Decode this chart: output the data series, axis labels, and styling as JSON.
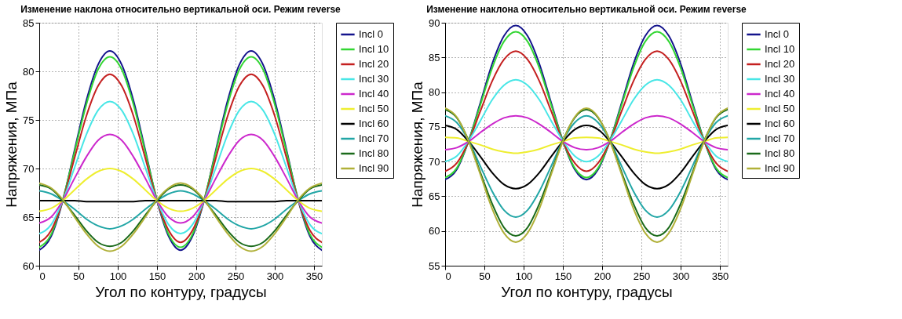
{
  "chart_data": [
    {
      "type": "line",
      "title": "Изменение наклона относительно вертикальной оси. Режим reverse",
      "xlabel": "Угол по контуру, градусы",
      "ylabel": "Напряжения, МПа",
      "x": [
        0,
        15,
        30,
        45,
        60,
        75,
        90,
        105,
        120,
        135,
        150,
        165,
        180,
        195,
        210,
        225,
        240,
        255,
        270,
        285,
        300,
        315,
        330,
        345,
        360
      ],
      "xlim": [
        0,
        360
      ],
      "xticks": [
        0,
        50,
        100,
        150,
        200,
        250,
        300,
        350
      ],
      "ylim": [
        60,
        85
      ],
      "yticks": [
        60,
        65,
        70,
        75,
        80,
        85
      ],
      "grid": true,
      "legend": "top right",
      "marker": "none",
      "line_style": "solid",
      "series": [
        {
          "name": "Incl 0",
          "color": "#14148c",
          "values": [
            61.6,
            63.0,
            66.7,
            71.9,
            77.0,
            80.7,
            82.1,
            80.7,
            77.0,
            71.9,
            66.7,
            63.0,
            61.6,
            63.0,
            66.7,
            71.9,
            77.0,
            80.7,
            82.1,
            80.7,
            77.0,
            71.9,
            66.7,
            63.0,
            61.6
          ]
        },
        {
          "name": "Incl 10",
          "color": "#33d633",
          "values": [
            61.9,
            63.2,
            66.8,
            71.7,
            76.6,
            80.2,
            81.5,
            80.2,
            76.6,
            71.7,
            66.8,
            63.2,
            61.9,
            63.2,
            66.8,
            71.7,
            76.6,
            80.2,
            81.5,
            80.2,
            76.6,
            71.7,
            66.8,
            63.2,
            61.9
          ]
        },
        {
          "name": "Incl 20",
          "color": "#c42020",
          "values": [
            62.4,
            63.6,
            66.7,
            71.1,
            75.4,
            78.5,
            79.7,
            78.5,
            75.4,
            71.1,
            66.7,
            63.6,
            62.4,
            63.6,
            66.7,
            71.1,
            75.4,
            78.5,
            79.7,
            78.5,
            75.4,
            71.1,
            66.7,
            63.6,
            62.4
          ]
        },
        {
          "name": "Incl 30",
          "color": "#48e6e6",
          "values": [
            63.3,
            64.2,
            66.7,
            70.1,
            73.5,
            76.0,
            76.9,
            76.0,
            73.5,
            70.1,
            66.7,
            64.2,
            63.3,
            64.2,
            66.7,
            70.1,
            73.5,
            76.0,
            76.9,
            76.0,
            73.5,
            70.1,
            66.7,
            64.2,
            63.3
          ]
        },
        {
          "name": "Incl 40",
          "color": "#cc28cc",
          "values": [
            64.4,
            65.0,
            66.7,
            69.0,
            71.2,
            72.9,
            73.5,
            72.9,
            71.2,
            69.0,
            66.7,
            65.0,
            64.4,
            65.0,
            66.7,
            69.0,
            71.2,
            72.9,
            73.5,
            72.9,
            71.2,
            69.0,
            66.7,
            65.0,
            64.4
          ]
        },
        {
          "name": "Incl 50",
          "color": "#eeee30",
          "values": [
            65.6,
            65.9,
            66.7,
            67.8,
            68.9,
            69.7,
            70.0,
            69.7,
            68.9,
            67.8,
            66.7,
            65.9,
            65.6,
            65.9,
            66.7,
            67.8,
            68.9,
            69.7,
            70.0,
            69.7,
            68.9,
            67.8,
            66.7,
            65.9,
            65.6
          ]
        },
        {
          "name": "Incl 60",
          "color": "#000000",
          "values": [
            66.7,
            66.7,
            66.7,
            66.7,
            66.6,
            66.6,
            66.6,
            66.6,
            66.6,
            66.7,
            66.7,
            66.7,
            66.7,
            66.7,
            66.7,
            66.7,
            66.6,
            66.6,
            66.6,
            66.6,
            66.6,
            66.7,
            66.7,
            66.7,
            66.7
          ]
        },
        {
          "name": "Incl 70",
          "color": "#22a6a6",
          "values": [
            67.7,
            67.4,
            66.7,
            65.8,
            64.8,
            64.1,
            63.8,
            64.1,
            64.8,
            65.8,
            66.7,
            67.4,
            67.7,
            67.4,
            66.7,
            65.8,
            64.8,
            64.1,
            63.8,
            64.1,
            64.8,
            65.8,
            66.7,
            67.4,
            67.7
          ]
        },
        {
          "name": "Incl 80",
          "color": "#1a6a1a",
          "values": [
            68.3,
            67.9,
            66.7,
            65.2,
            63.6,
            62.4,
            62.0,
            62.4,
            63.6,
            65.2,
            66.7,
            67.9,
            68.3,
            67.9,
            66.7,
            65.2,
            63.6,
            62.4,
            62.0,
            62.4,
            63.6,
            65.2,
            66.7,
            67.9,
            68.3
          ]
        },
        {
          "name": "Incl 90",
          "color": "#b0b038",
          "values": [
            68.5,
            68.0,
            66.8,
            65.0,
            63.3,
            62.0,
            61.5,
            62.0,
            63.3,
            65.0,
            66.8,
            68.0,
            68.5,
            68.0,
            66.8,
            65.0,
            63.3,
            62.0,
            61.5,
            62.0,
            63.3,
            65.0,
            66.8,
            68.0,
            68.5
          ]
        }
      ]
    },
    {
      "type": "line",
      "title": "Изменение наклона относительно вертикальной оси. Режим reverse",
      "xlabel": "Угол по контуру, градусы",
      "ylabel": "Напряжения, МПа",
      "x": [
        0,
        15,
        30,
        45,
        60,
        75,
        90,
        105,
        120,
        135,
        150,
        165,
        180,
        195,
        210,
        225,
        240,
        255,
        270,
        285,
        300,
        315,
        330,
        345,
        360
      ],
      "xlim": [
        0,
        360
      ],
      "xticks": [
        0,
        50,
        100,
        150,
        200,
        250,
        300,
        350
      ],
      "ylim": [
        55,
        90
      ],
      "yticks": [
        55,
        60,
        65,
        70,
        75,
        80,
        85,
        90
      ],
      "grid": true,
      "legend": "top right",
      "marker": "none",
      "line_style": "solid",
      "series": [
        {
          "name": "Incl 0",
          "color": "#14148c",
          "values": [
            67.4,
            68.9,
            73.0,
            78.5,
            84.1,
            88.1,
            89.6,
            88.1,
            84.1,
            78.5,
            73.0,
            68.9,
            67.4,
            68.9,
            73.0,
            78.5,
            84.1,
            88.1,
            89.6,
            88.1,
            84.1,
            78.5,
            73.0,
            68.9,
            67.4
          ]
        },
        {
          "name": "Incl 10",
          "color": "#33d633",
          "values": [
            67.7,
            69.1,
            73.0,
            78.2,
            83.5,
            87.3,
            88.7,
            87.3,
            83.5,
            78.2,
            73.0,
            69.1,
            67.7,
            69.1,
            73.0,
            78.2,
            83.5,
            87.3,
            88.7,
            87.3,
            83.5,
            78.2,
            73.0,
            69.1,
            67.7
          ]
        },
        {
          "name": "Incl 20",
          "color": "#c42020",
          "values": [
            68.6,
            69.8,
            72.9,
            77.3,
            81.6,
            84.7,
            85.9,
            84.7,
            81.6,
            77.3,
            72.9,
            69.8,
            68.6,
            69.8,
            72.9,
            77.3,
            81.6,
            84.7,
            85.9,
            84.7,
            81.6,
            77.3,
            72.9,
            69.8,
            68.6
          ]
        },
        {
          "name": "Incl 30",
          "color": "#48e6e6",
          "values": [
            70.0,
            70.8,
            73.0,
            75.9,
            78.9,
            81.0,
            81.8,
            81.0,
            78.9,
            75.9,
            73.0,
            70.8,
            70.0,
            70.8,
            73.0,
            75.9,
            78.9,
            81.0,
            81.8,
            81.0,
            78.9,
            75.9,
            73.0,
            70.8,
            70.0
          ]
        },
        {
          "name": "Incl 40",
          "color": "#cc28cc",
          "values": [
            71.7,
            72.0,
            72.9,
            74.2,
            75.4,
            76.3,
            76.6,
            76.3,
            75.4,
            74.2,
            72.9,
            72.0,
            71.7,
            72.0,
            72.9,
            74.2,
            75.4,
            76.3,
            76.6,
            76.3,
            75.4,
            74.2,
            72.9,
            72.0,
            71.7
          ]
        },
        {
          "name": "Incl 50",
          "color": "#eeee30",
          "values": [
            73.5,
            73.4,
            72.9,
            72.4,
            71.8,
            71.4,
            71.2,
            71.4,
            71.8,
            72.4,
            72.9,
            73.4,
            73.5,
            73.4,
            72.9,
            72.4,
            71.8,
            71.4,
            71.2,
            71.4,
            71.8,
            72.4,
            72.9,
            73.4,
            73.5
          ]
        },
        {
          "name": "Incl 60",
          "color": "#000000",
          "values": [
            75.2,
            74.6,
            72.9,
            70.7,
            68.4,
            66.7,
            66.1,
            66.7,
            68.4,
            70.7,
            72.9,
            74.6,
            75.2,
            74.6,
            72.9,
            70.7,
            68.4,
            66.7,
            66.1,
            66.7,
            68.4,
            70.7,
            72.9,
            74.6,
            75.2
          ]
        },
        {
          "name": "Incl 70",
          "color": "#22a6a6",
          "values": [
            76.6,
            75.6,
            73.0,
            69.3,
            65.7,
            63.0,
            62.0,
            63.0,
            65.7,
            69.3,
            73.0,
            75.6,
            76.6,
            75.6,
            73.0,
            69.3,
            65.7,
            63.0,
            62.0,
            63.0,
            65.7,
            69.3,
            73.0,
            75.6,
            76.6
          ]
        },
        {
          "name": "Incl 80",
          "color": "#1a6a1a",
          "values": [
            77.5,
            76.3,
            73.0,
            68.4,
            63.9,
            60.5,
            59.3,
            60.5,
            63.9,
            68.4,
            73.0,
            76.3,
            77.5,
            76.3,
            73.0,
            68.4,
            63.9,
            60.5,
            59.3,
            60.5,
            63.9,
            68.4,
            73.0,
            76.3,
            77.5
          ]
        },
        {
          "name": "Incl 90",
          "color": "#b0b038",
          "values": [
            77.7,
            76.4,
            72.9,
            68.1,
            63.2,
            59.7,
            58.4,
            59.7,
            63.2,
            68.1,
            72.9,
            76.4,
            77.7,
            76.4,
            72.9,
            68.1,
            63.2,
            59.7,
            58.4,
            59.7,
            63.2,
            68.1,
            72.9,
            76.4,
            77.7
          ]
        }
      ]
    }
  ]
}
